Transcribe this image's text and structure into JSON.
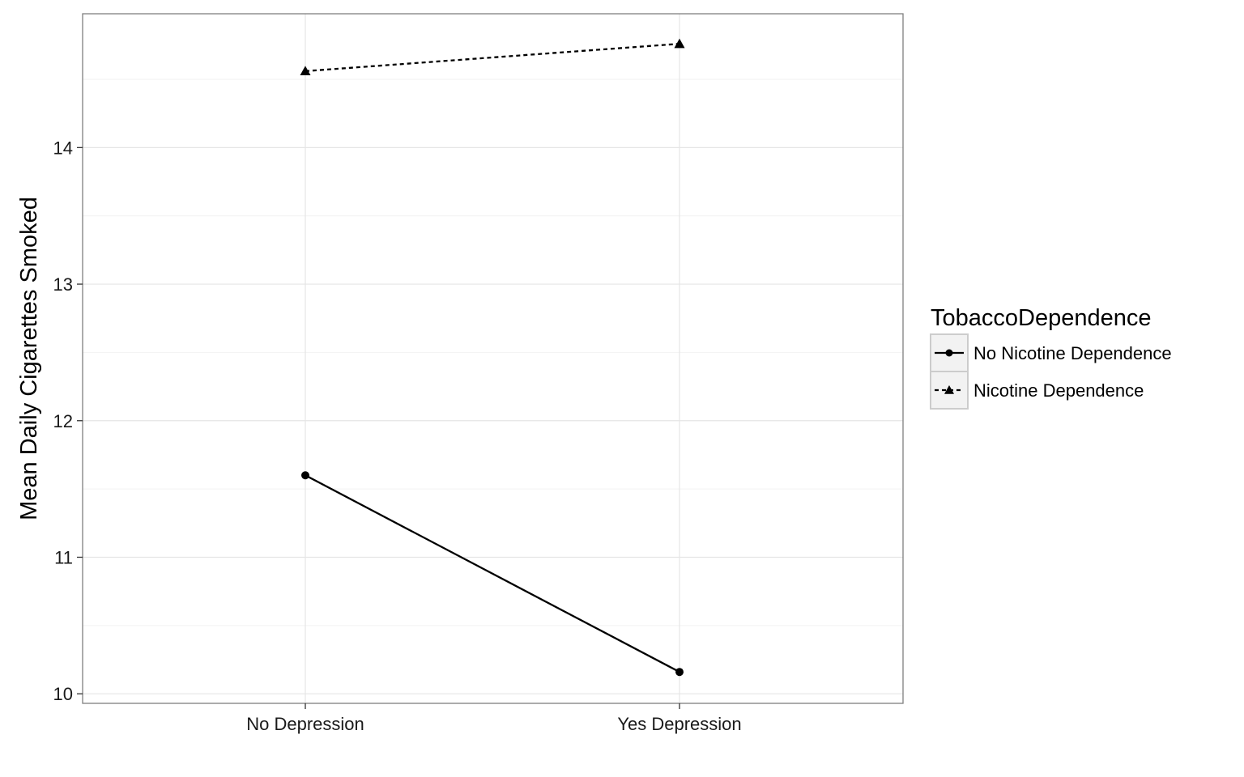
{
  "chart_data": {
    "type": "line",
    "title": "",
    "xlabel": "",
    "ylabel": "Mean Daily Cigarettes Smoked",
    "categories": [
      "No Depression",
      "Yes Depression"
    ],
    "ylim": [
      9.93,
      14.98
    ],
    "y_ticks": [
      10,
      11,
      12,
      13,
      14
    ],
    "grid": true,
    "legend": {
      "title": "TobaccoDependence",
      "placement": "right"
    },
    "series": [
      {
        "name": "No Nicotine Dependence",
        "values": [
          11.6,
          10.16
        ],
        "marker": "circle",
        "line_style": "solid",
        "color": "#000000"
      },
      {
        "name": "Nicotine Dependence",
        "values": [
          14.56,
          14.76
        ],
        "marker": "triangle",
        "line_style": "dashed",
        "color": "#000000"
      }
    ]
  }
}
